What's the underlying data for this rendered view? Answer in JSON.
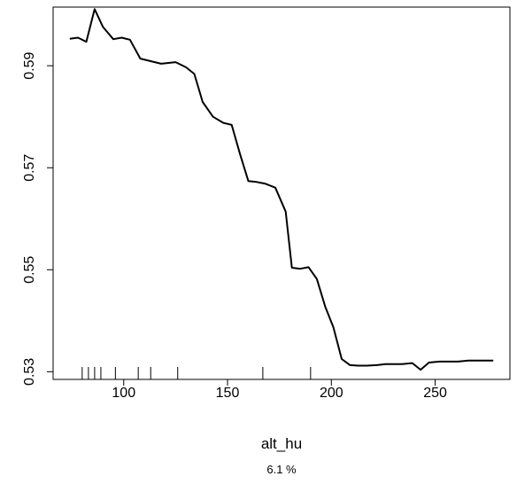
{
  "chart_data": {
    "type": "line",
    "xlabel": "alt_hu",
    "subtitle": "6.1 %",
    "ylabel": "",
    "xlim": [
      66,
      286
    ],
    "ylim": [
      0.5285,
      0.6015
    ],
    "x_ticks": [
      100,
      150,
      200,
      250
    ],
    "x_tick_labels": [
      "100",
      "150",
      "200",
      "250"
    ],
    "y_ticks": [
      0.53,
      0.55,
      0.57,
      0.59
    ],
    "y_tick_labels": [
      "0.53",
      "0.55",
      "0.57",
      "0.59"
    ],
    "grid": false,
    "legend": "none",
    "line_color": "#000000",
    "series": [
      {
        "x": [
          74,
          78,
          82,
          86,
          90,
          95,
          99,
          103,
          108,
          113,
          118,
          125,
          130,
          134,
          138,
          143,
          148,
          152,
          156,
          160,
          164,
          168,
          173,
          178,
          181,
          185,
          189,
          193,
          197,
          201,
          205,
          209,
          213,
          217,
          222,
          226,
          230,
          234,
          239,
          243,
          247,
          252,
          257,
          261,
          266,
          270,
          274,
          278
        ],
        "y": [
          0.5953,
          0.5955,
          0.5947,
          0.6011,
          0.5976,
          0.5952,
          0.5955,
          0.5951,
          0.5914,
          0.5909,
          0.5904,
          0.5907,
          0.5897,
          0.5884,
          0.5829,
          0.58,
          0.5788,
          0.5784,
          0.5727,
          0.5674,
          0.5672,
          0.5669,
          0.5661,
          0.5614,
          0.5504,
          0.5502,
          0.5505,
          0.5482,
          0.5428,
          0.5387,
          0.5325,
          0.5313,
          0.5312,
          0.5312,
          0.5313,
          0.5315,
          0.5315,
          0.5315,
          0.5317,
          0.5304,
          0.5318,
          0.532,
          0.532,
          0.532,
          0.5322,
          0.5322,
          0.5322,
          0.5322
        ]
      }
    ],
    "rug": [
      80,
      83,
      86,
      89,
      96,
      107,
      113,
      126,
      167,
      190
    ]
  }
}
